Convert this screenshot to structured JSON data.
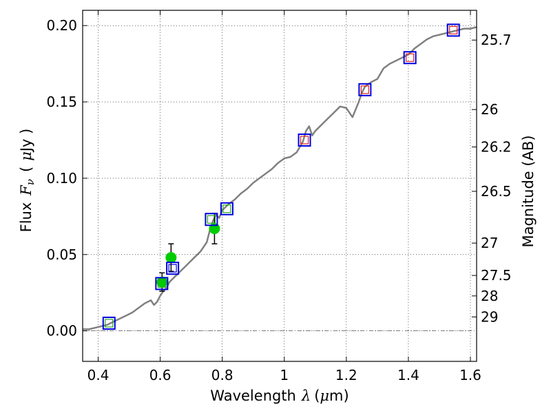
{
  "chart_data": {
    "type": "scatter",
    "xlabel": "Wavelength",
    "xlabel_symbol": "λ",
    "xlabel_unit_open": "(",
    "xlabel_unit_mu": "μ",
    "xlabel_unit_rest": "m)",
    "ylabel": "Flux",
    "ylabel_symbol": "F",
    "ylabel_subscript": "ν",
    "ylabel_unit_open": "(",
    "ylabel_unit_mu": "μ",
    "ylabel_unit_rest": "Jy )",
    "ylabel_right": "Magnitude (AB)",
    "xlim": [
      0.35,
      1.62
    ],
    "ylim": [
      -0.02,
      0.21
    ],
    "grid": true,
    "x_ticks": [
      0.4,
      0.6,
      0.8,
      1.0,
      1.2,
      1.4,
      1.6
    ],
    "x_tick_labels": [
      "0.4",
      "0.6",
      "0.8",
      "1",
      "1.2",
      "1.4",
      "1.6"
    ],
    "y_ticks": [
      0.0,
      0.05,
      0.1,
      0.15,
      0.2
    ],
    "y_tick_labels": [
      "0.00",
      "0.05",
      "0.10",
      "0.15",
      "0.20"
    ],
    "mag_ticks": [
      {
        "label": "25.7",
        "flux": 0.1905
      },
      {
        "label": "26",
        "flux": 0.145
      },
      {
        "label": "26.2",
        "flux": 0.1205
      },
      {
        "label": "26.5",
        "flux": 0.0914
      },
      {
        "label": "27",
        "flux": 0.0575
      },
      {
        "label": "27.5",
        "flux": 0.0363
      },
      {
        "label": "28",
        "flux": 0.0229
      },
      {
        "label": "29",
        "flux": 0.0091
      }
    ],
    "series": [
      {
        "name": "template_spectrum",
        "color": "#808080",
        "x": [
          0.35,
          0.37,
          0.39,
          0.41,
          0.43,
          0.45,
          0.47,
          0.49,
          0.51,
          0.53,
          0.55,
          0.57,
          0.58,
          0.59,
          0.6,
          0.61,
          0.62,
          0.63,
          0.65,
          0.67,
          0.69,
          0.71,
          0.73,
          0.75,
          0.76,
          0.77,
          0.78,
          0.79,
          0.8,
          0.82,
          0.84,
          0.86,
          0.88,
          0.9,
          0.92,
          0.94,
          0.96,
          0.98,
          1.0,
          1.02,
          1.04,
          1.06,
          1.07,
          1.08,
          1.09,
          1.1,
          1.12,
          1.14,
          1.16,
          1.18,
          1.2,
          1.22,
          1.24,
          1.25,
          1.26,
          1.28,
          1.3,
          1.32,
          1.34,
          1.36,
          1.38,
          1.4,
          1.42,
          1.44,
          1.46,
          1.48,
          1.5,
          1.52,
          1.54,
          1.56,
          1.58,
          1.6,
          1.62
        ],
        "values": [
          0.001,
          0.001,
          0.002,
          0.003,
          0.004,
          0.006,
          0.008,
          0.01,
          0.012,
          0.015,
          0.018,
          0.02,
          0.017,
          0.019,
          0.023,
          0.026,
          0.028,
          0.032,
          0.036,
          0.04,
          0.044,
          0.048,
          0.052,
          0.058,
          0.066,
          0.072,
          0.076,
          0.074,
          0.079,
          0.083,
          0.086,
          0.09,
          0.093,
          0.097,
          0.1,
          0.103,
          0.106,
          0.11,
          0.113,
          0.114,
          0.117,
          0.124,
          0.131,
          0.134,
          0.128,
          0.131,
          0.135,
          0.139,
          0.143,
          0.147,
          0.146,
          0.14,
          0.15,
          0.156,
          0.16,
          0.163,
          0.165,
          0.172,
          0.175,
          0.177,
          0.179,
          0.181,
          0.185,
          0.188,
          0.191,
          0.193,
          0.194,
          0.195,
          0.196,
          0.197,
          0.198,
          0.198,
          0.199
        ]
      },
      {
        "name": "model_photometry",
        "marker": "square",
        "color": "#0000dd",
        "x": [
          0.435,
          0.605,
          0.64,
          0.765,
          0.815,
          1.065,
          1.26,
          1.405,
          1.545
        ],
        "values": [
          0.005,
          0.031,
          0.041,
          0.073,
          0.08,
          0.125,
          0.158,
          0.179,
          0.197
        ],
        "inner_colors": [
          "#22aa22",
          "#22aa22",
          "#0000dd",
          "#22aa22",
          "#22aa22",
          "#dd2222",
          "#dd2222",
          "#dd2222",
          "#dd2222"
        ]
      },
      {
        "name": "observed_photometry",
        "marker": "circle",
        "color": "#00cc00",
        "x": [
          0.606,
          0.635,
          0.775
        ],
        "values": [
          0.032,
          0.048,
          0.067
        ],
        "errors": [
          0.006,
          0.009,
          0.01
        ]
      }
    ]
  }
}
